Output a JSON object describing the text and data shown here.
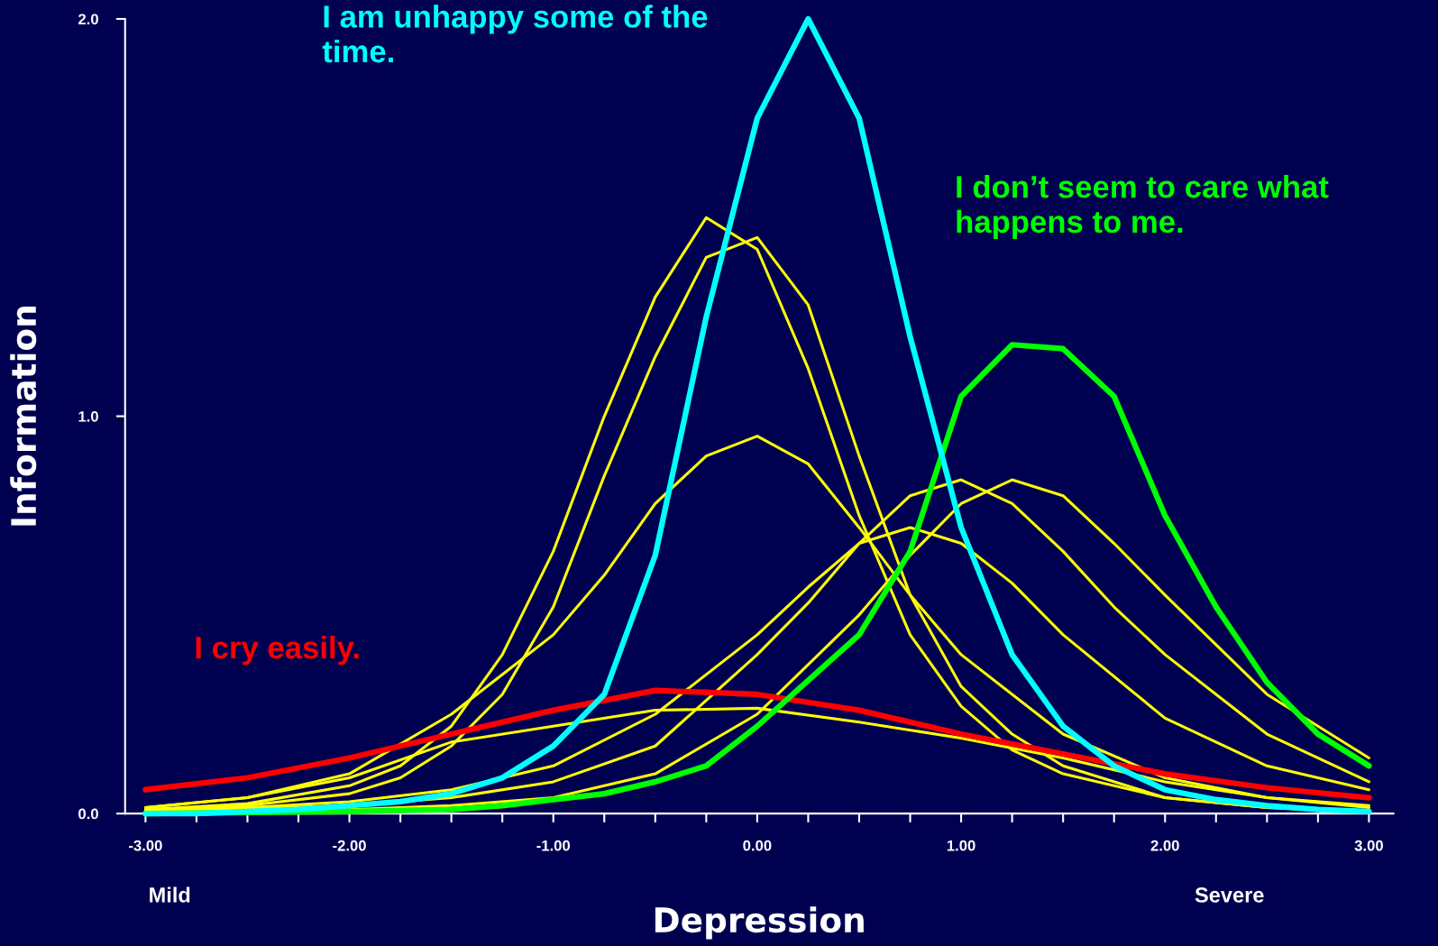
{
  "chart_data": {
    "type": "line",
    "xlabel": "Depression",
    "ylabel": "Information",
    "annotations": [
      "Mild",
      "Severe"
    ],
    "xlim": [
      -3.1,
      3.12
    ],
    "ylim": [
      0,
      2.0
    ],
    "xticks": [
      {
        "value": -3,
        "label": "-3.00"
      },
      {
        "value": -2.75,
        "label": null
      },
      {
        "value": -2.5,
        "label": null
      },
      {
        "value": -2.25,
        "label": null
      },
      {
        "value": -2,
        "label": "-2.00"
      },
      {
        "value": -1.75,
        "label": null
      },
      {
        "value": -1.5,
        "label": null
      },
      {
        "value": -1.25,
        "label": null
      },
      {
        "value": -1,
        "label": "-1.00"
      },
      {
        "value": -0.75,
        "label": null
      },
      {
        "value": -0.5,
        "label": null
      },
      {
        "value": -0.25,
        "label": null
      },
      {
        "value": 0,
        "label": "0.00"
      },
      {
        "value": 0.25,
        "label": null
      },
      {
        "value": 0.5,
        "label": null
      },
      {
        "value": 0.75,
        "label": null
      },
      {
        "value": 1,
        "label": "1.00"
      },
      {
        "value": 1.25,
        "label": null
      },
      {
        "value": 1.5,
        "label": null
      },
      {
        "value": 1.75,
        "label": null
      },
      {
        "value": 2,
        "label": "2.00"
      },
      {
        "value": 2.25,
        "label": null
      },
      {
        "value": 2.5,
        "label": null
      },
      {
        "value": 2.75,
        "label": null
      },
      {
        "value": 3,
        "label": "3.00"
      }
    ],
    "yticks": [
      {
        "value": 0,
        "label": "0.0"
      },
      {
        "value": 1,
        "label": "1.0"
      },
      {
        "value": 2,
        "label": "2.0"
      }
    ],
    "grid": false,
    "marker": "none",
    "line_style": "solid",
    "series": [
      {
        "color": "#ffff00",
        "x": [
          -3,
          -2.5,
          -2,
          -1.75,
          -1.5,
          -1.25,
          -1,
          -0.75,
          -0.5,
          -0.25,
          0,
          0.25,
          0.5,
          0.75,
          1,
          1.25,
          1.5,
          2,
          2.5,
          3
        ],
        "values": [
          0.01,
          0.025,
          0.07,
          0.12,
          0.22,
          0.4,
          0.66,
          1.0,
          1.3,
          1.5,
          1.42,
          1.12,
          0.75,
          0.45,
          0.27,
          0.16,
          0.1,
          0.04,
          0.015,
          0.005
        ]
      },
      {
        "color": "#ffff00",
        "x": [
          -3,
          -2.5,
          -2,
          -1.75,
          -1.5,
          -1.25,
          -1,
          -0.75,
          -0.5,
          -0.25,
          0,
          0.25,
          0.5,
          0.75,
          1,
          1.25,
          1.5,
          2,
          2.5,
          3
        ],
        "values": [
          0.01,
          0.02,
          0.05,
          0.09,
          0.17,
          0.3,
          0.52,
          0.85,
          1.15,
          1.4,
          1.45,
          1.28,
          0.9,
          0.55,
          0.32,
          0.2,
          0.12,
          0.04,
          0.015,
          0.005
        ]
      },
      {
        "color": "#ffff00",
        "x": [
          -3,
          -2.5,
          -2,
          -1.5,
          -1.25,
          -1,
          -0.75,
          -0.5,
          -0.25,
          0,
          0.25,
          0.5,
          0.75,
          1,
          1.5,
          2,
          2.5,
          3
        ],
        "values": [
          0.015,
          0.04,
          0.1,
          0.25,
          0.35,
          0.45,
          0.6,
          0.78,
          0.9,
          0.95,
          0.88,
          0.72,
          0.55,
          0.4,
          0.2,
          0.09,
          0.04,
          0.015
        ]
      },
      {
        "color": "#ffff00",
        "x": [
          -3,
          -2.5,
          -2,
          -1.5,
          -1,
          -0.5,
          0,
          0.5,
          1,
          1.5,
          2,
          2.5,
          3
        ],
        "values": [
          0.015,
          0.04,
          0.09,
          0.18,
          0.22,
          0.26,
          0.265,
          0.23,
          0.19,
          0.14,
          0.08,
          0.04,
          0.02
        ]
      },
      {
        "color": "#ffff00",
        "x": [
          -3,
          -2.5,
          -2,
          -1.5,
          -1,
          -0.5,
          0,
          0.25,
          0.5,
          0.75,
          1,
          1.25,
          1.5,
          2,
          2.5,
          3
        ],
        "values": [
          0.005,
          0.015,
          0.03,
          0.06,
          0.12,
          0.25,
          0.45,
          0.57,
          0.68,
          0.72,
          0.68,
          0.58,
          0.45,
          0.24,
          0.12,
          0.06
        ]
      },
      {
        "color": "#ffff00",
        "x": [
          -3,
          -2,
          -1.5,
          -1,
          -0.5,
          0,
          0.25,
          0.5,
          0.75,
          1,
          1.25,
          1.5,
          1.75,
          2,
          2.5,
          3
        ],
        "values": [
          0.005,
          0.02,
          0.04,
          0.08,
          0.17,
          0.4,
          0.53,
          0.68,
          0.8,
          0.84,
          0.78,
          0.66,
          0.52,
          0.4,
          0.2,
          0.08
        ]
      },
      {
        "color": "#ffff00",
        "x": [
          -3,
          -2,
          -1.5,
          -1,
          -0.5,
          0,
          0.5,
          0.75,
          1,
          1.25,
          1.5,
          1.75,
          2,
          2.5,
          3
        ],
        "values": [
          0.0,
          0.01,
          0.02,
          0.04,
          0.1,
          0.25,
          0.5,
          0.65,
          0.78,
          0.84,
          0.8,
          0.68,
          0.55,
          0.3,
          0.14
        ]
      },
      {
        "name": "I cry easily.",
        "color": "#ff0000",
        "x": [
          -3,
          -2.5,
          -2,
          -1.5,
          -1,
          -0.5,
          0,
          0.5,
          1,
          1.5,
          2,
          2.5,
          3
        ],
        "values": [
          0.06,
          0.09,
          0.14,
          0.2,
          0.26,
          0.31,
          0.3,
          0.26,
          0.2,
          0.15,
          0.1,
          0.065,
          0.04
        ]
      },
      {
        "name": "I don’t seem to care what happens to me.",
        "color": "#00ff00",
        "x": [
          -3,
          -2,
          -1.5,
          -1.25,
          -1,
          -0.75,
          -0.5,
          -0.25,
          0,
          0.5,
          0.75,
          1,
          1.25,
          1.5,
          1.75,
          2,
          2.25,
          2.5,
          2.75,
          3
        ],
        "values": [
          0.0,
          0.005,
          0.01,
          0.02,
          0.035,
          0.05,
          0.08,
          0.12,
          0.22,
          0.45,
          0.66,
          1.05,
          1.18,
          1.17,
          1.05,
          0.75,
          0.52,
          0.33,
          0.2,
          0.12
        ]
      },
      {
        "name": "I am unhappy some of the time.",
        "color": "#00ffff",
        "x": [
          -3,
          -2.75,
          -2.5,
          -2.25,
          -2,
          -1.75,
          -1.5,
          -1.25,
          -1,
          -0.75,
          -0.5,
          -0.25,
          0,
          0.25,
          0.5,
          0.75,
          1,
          1.25,
          1.5,
          1.75,
          2,
          2.25,
          2.5,
          2.75,
          3
        ],
        "values": [
          0.0,
          0.0,
          0.005,
          0.01,
          0.02,
          0.03,
          0.05,
          0.09,
          0.17,
          0.3,
          0.65,
          1.25,
          1.75,
          2.0,
          1.75,
          1.2,
          0.72,
          0.4,
          0.22,
          0.12,
          0.06,
          0.035,
          0.02,
          0.01,
          0.005
        ]
      }
    ]
  }
}
